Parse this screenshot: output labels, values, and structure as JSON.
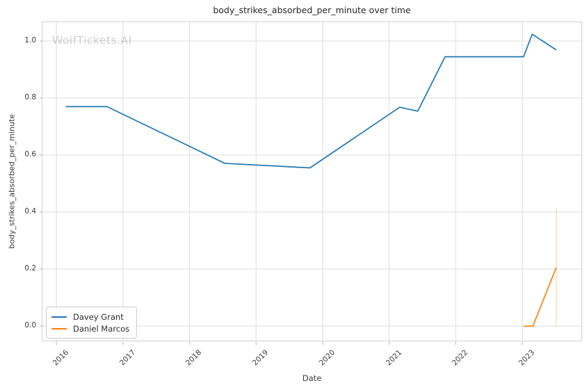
{
  "figure": {
    "title": "body_strikes_absorbed_per_minute over time",
    "watermark": "WolfTickets.AI"
  },
  "chart_data": {
    "type": "line",
    "title": "body_strikes_absorbed_per_minute over time",
    "xlabel": "Date",
    "ylabel": "body_strikes_absorbed_per_minute",
    "grid": true,
    "background": "#ffffff",
    "grid_color": "#dcdcdc",
    "spine_color": "#cfcfcf",
    "tick_color": "#b5b5b5",
    "xlim": [
      2015.79,
      2023.91
    ],
    "ylim": [
      -0.056,
      1.066
    ],
    "x_ticks": [
      2016,
      2017,
      2018,
      2019,
      2020,
      2021,
      2022,
      2023
    ],
    "x_tick_labels": [
      "2016",
      "2017",
      "2018",
      "2019",
      "2020",
      "2021",
      "2022",
      "2023"
    ],
    "y_ticks": [
      0.0,
      0.2,
      0.4,
      0.6,
      0.8,
      1.0
    ],
    "y_tick_labels": [
      "0.0",
      "0.2",
      "0.4",
      "0.6",
      "0.8",
      "1.0"
    ],
    "legend_position": "lower left",
    "series": [
      {
        "name": "Davey Grant",
        "color": "#1f77b4",
        "points": [
          [
            2016.14,
            0.77
          ],
          [
            2016.76,
            0.77
          ],
          [
            2018.53,
            0.571
          ],
          [
            2019.81,
            0.555
          ],
          [
            2021.16,
            0.768
          ],
          [
            2021.43,
            0.754
          ],
          [
            2021.84,
            0.945
          ],
          [
            2023.02,
            0.945
          ],
          [
            2023.15,
            1.024
          ],
          [
            2023.51,
            0.969
          ]
        ]
      },
      {
        "name": "Daniel Marcos",
        "color": "#ff7f0e",
        "points": [
          [
            2023.02,
            0.0
          ],
          [
            2023.16,
            0.0
          ],
          [
            2023.51,
            0.205
          ]
        ],
        "ci_bar": {
          "x": 2023.51,
          "y_min": 0.0,
          "y_max": 0.415
        }
      }
    ]
  }
}
